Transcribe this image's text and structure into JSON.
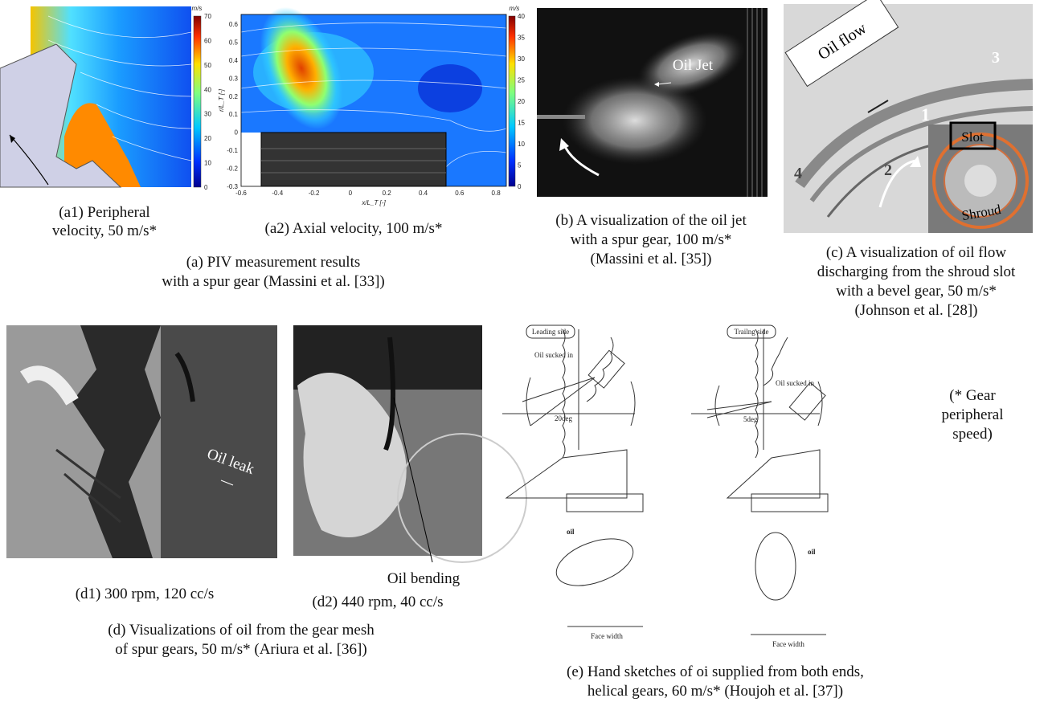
{
  "panels": {
    "a1": {
      "caption": [
        "(a1) Peripheral",
        "velocity, 50 m/s*"
      ],
      "colorbar": {
        "unit": "m/s",
        "ticks": [
          "70",
          "60",
          "50",
          "40",
          "30",
          "20",
          "10",
          "0"
        ]
      }
    },
    "a2": {
      "caption": "(a2) Axial velocity, 100 m/s*",
      "x_label": "x/L_T [-]",
      "y_label": "r/L_T [-]",
      "x_ticks": [
        "-0.6",
        "-0.4",
        "-0.2",
        "0",
        "0.2",
        "0.4",
        "0.6",
        "0.8"
      ],
      "y_ticks": [
        "0.6",
        "0.5",
        "0.4",
        "0.3",
        "0.2",
        "0.1",
        "0",
        "-0.1",
        "-0.2",
        "-0.3"
      ],
      "colorbar": {
        "unit": "m/s",
        "ticks": [
          "40",
          "35",
          "30",
          "25",
          "20",
          "15",
          "10",
          "5",
          "0"
        ]
      }
    },
    "a": {
      "caption": [
        "(a) PIV measurement results",
        "with a spur gear (Massini et al. [33])"
      ]
    },
    "b": {
      "annotation": "Oil Jet",
      "caption": [
        "(b) A visualization of the oil jet",
        "with a spur gear, 100 m/s*",
        "(Massini et al. [35])"
      ]
    },
    "c": {
      "annotations": {
        "flow": "Oil flow",
        "n1": "1",
        "n2": "2",
        "n3": "3",
        "n4": "4",
        "slot": "Slot",
        "shroud": "Shroud"
      },
      "caption": [
        "(c) A visualization of oil flow",
        "discharging from the shroud slot",
        "with a bevel gear, 50 m/s*",
        "(Johnson et al. [28])"
      ]
    },
    "d1": {
      "annotation": "Oil leak",
      "caption": "(d1) 300 rpm, 120 cc/s"
    },
    "d2": {
      "annotation": "Oil bending",
      "caption": "(d2) 440 rpm, 40 cc/s"
    },
    "d": {
      "caption": [
        "(d) Visualizations of oil from the gear mesh",
        "of spur gears, 50 m/s* (Ariura et al. [36])"
      ]
    },
    "e": {
      "leading": {
        "title": "Leading side",
        "sucked": "Oil sucked in",
        "angle": "20deg",
        "oil": "oil",
        "face": "Face width"
      },
      "trailing": {
        "title": "Trailng side",
        "sucked": "Oil sucked in",
        "angle": "5deg",
        "oil": "oil",
        "face": "Face width"
      },
      "caption": [
        "(e) Hand sketches of oi supplied from both ends,",
        "helical gears, 60 m/s* (Houjoh et al. [37])"
      ]
    },
    "note": [
      "(* Gear",
      "peripheral",
      "speed)"
    ]
  }
}
